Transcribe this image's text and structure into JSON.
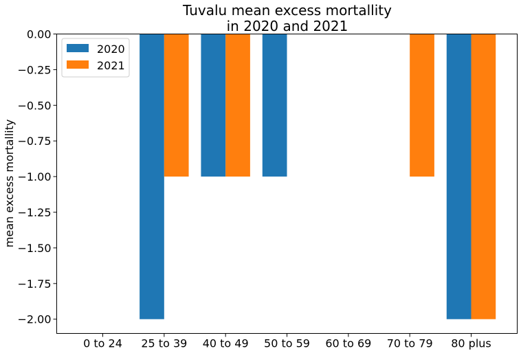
{
  "chart_data": {
    "type": "bar",
    "title": [
      "Tuvalu mean excess mortallity",
      "in 2020 and 2021"
    ],
    "xlabel": "",
    "ylabel": "mean excess mortallity",
    "categories": [
      "0 to 24",
      "25 to 39",
      "40 to 49",
      "50 to 59",
      "60 to 69",
      "70 to 79",
      "80 plus"
    ],
    "series": [
      {
        "name": "2020",
        "color": "#1f77b4",
        "values": [
          0,
          -2,
          -1,
          -1,
          0,
          0,
          -2
        ]
      },
      {
        "name": "2021",
        "color": "#ff7f0e",
        "values": [
          0,
          -1,
          -1,
          0,
          0,
          -1,
          -2
        ]
      }
    ],
    "ylim": [
      -2.1,
      0.0
    ],
    "yticks": [
      0.0,
      -0.25,
      -0.5,
      -0.75,
      -1.0,
      -1.25,
      -1.5,
      -1.75,
      -2.0
    ],
    "ytick_labels": [
      "0.00",
      "−0.25",
      "−0.50",
      "−0.75",
      "−1.00",
      "−1.25",
      "−1.50",
      "−1.75",
      "−2.00"
    ],
    "legend_position": "top-left",
    "grid": false
  }
}
